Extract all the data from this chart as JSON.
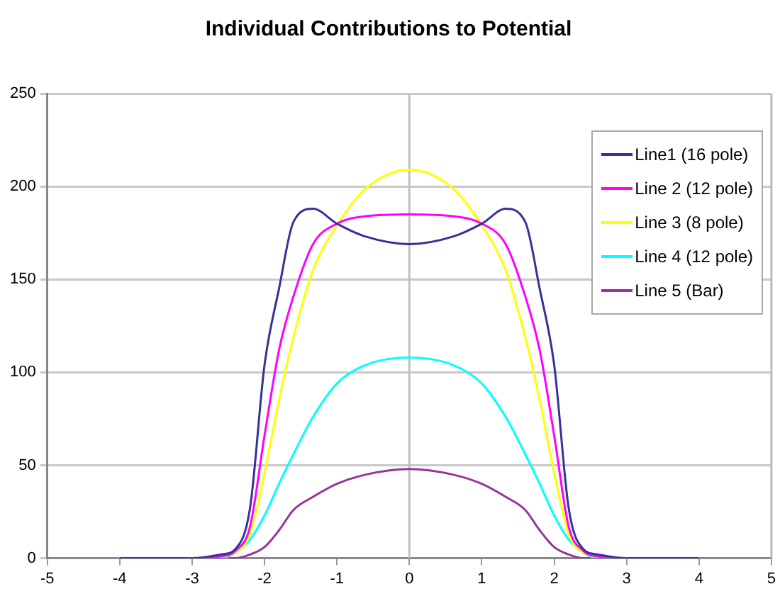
{
  "chart_data": {
    "type": "line",
    "title": "Individual Contributions to Potential",
    "x": [
      -4,
      -3,
      -2.6,
      -2.4,
      -2.2,
      -2,
      -1.8,
      -1.6,
      -1.33,
      -1,
      -0.6,
      0,
      0.6,
      1,
      1.33,
      1.6,
      1.8,
      2,
      2.2,
      2.4,
      2.6,
      3,
      4
    ],
    "series": [
      {
        "name": "Line1 (16 pole)",
        "color": "#333399",
        "values": [
          0,
          0,
          2,
          5,
          27,
          104,
          145,
          181,
          188,
          180,
          173,
          169,
          173,
          180,
          188,
          181,
          145,
          104,
          27,
          5,
          2,
          0,
          0
        ]
      },
      {
        "name": "Line 2 (12 pole)",
        "color": "#ff00ff",
        "values": [
          0,
          0,
          1,
          4,
          17,
          66,
          112,
          141,
          169,
          180,
          184,
          185,
          184,
          180,
          169,
          141,
          112,
          66,
          17,
          4,
          1,
          0,
          0
        ]
      },
      {
        "name": "Line 3 (8 pole)",
        "color": "#ffff00",
        "values": [
          0,
          0,
          1,
          3,
          13,
          46,
          85,
          119,
          155,
          179,
          199,
          209,
          199,
          179,
          155,
          119,
          85,
          46,
          13,
          3,
          1,
          0,
          0
        ]
      },
      {
        "name": "Line 4 (12 pole)",
        "color": "#00ffff",
        "values": [
          0,
          0,
          0,
          3,
          10,
          23,
          40,
          56,
          76,
          94,
          104,
          108,
          104,
          94,
          76,
          56,
          40,
          23,
          10,
          3,
          0,
          0,
          0
        ]
      },
      {
        "name": "Line 5 (Bar)",
        "color": "#993399",
        "values": [
          0,
          0,
          0,
          0,
          2,
          6,
          15,
          26,
          33,
          40,
          45,
          48,
          45,
          40,
          33,
          26,
          15,
          6,
          2,
          0,
          0,
          0,
          0
        ]
      }
    ],
    "xlim": [
      -5,
      5
    ],
    "xticks": [
      -5,
      -4,
      -3,
      -2,
      -1,
      0,
      1,
      2,
      3,
      4,
      5
    ],
    "ylim": [
      0,
      250
    ],
    "yticks": [
      0,
      50,
      100,
      150,
      200,
      250
    ],
    "ref_lines": [
      {
        "axis": "x",
        "value": 0,
        "color": "#c0c0c0"
      }
    ],
    "grid": "y",
    "legend": "top right",
    "marker": "none",
    "line_style": "solid"
  }
}
